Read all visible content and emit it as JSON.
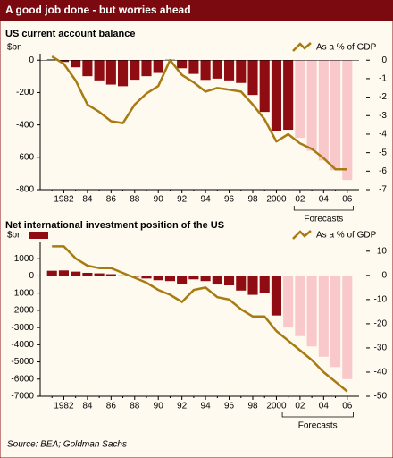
{
  "header": {
    "title": "A good job done - but worries ahead"
  },
  "chart_data": [
    {
      "type": "bar_line",
      "title": "US current account balance",
      "y_label": "$bn",
      "y_label_swatch": false,
      "x": [
        1981,
        1982,
        1983,
        1984,
        1985,
        1986,
        1987,
        1988,
        1989,
        1990,
        1991,
        1992,
        1993,
        1994,
        1995,
        1996,
        1997,
        1998,
        1999,
        2000,
        2001,
        2002,
        2003,
        2004,
        2005,
        2006
      ],
      "xlim": [
        1980,
        2007
      ],
      "xticks": [
        {
          "value": 1982,
          "label": "1982"
        },
        {
          "value": 1984,
          "label": "84"
        },
        {
          "value": 1986,
          "label": "86"
        },
        {
          "value": 1988,
          "label": "88"
        },
        {
          "value": 1990,
          "label": "90"
        },
        {
          "value": 1992,
          "label": "92"
        },
        {
          "value": 1994,
          "label": "94"
        },
        {
          "value": 1996,
          "label": "96"
        },
        {
          "value": 1998,
          "label": "98"
        },
        {
          "value": 2000,
          "label": "2000"
        },
        {
          "value": 2002,
          "label": "02"
        },
        {
          "value": 2004,
          "label": "04"
        },
        {
          "value": 2006,
          "label": "06"
        }
      ],
      "ylim": [
        -800,
        40
      ],
      "yticks": [
        0,
        -200,
        -400,
        -600,
        -800
      ],
      "y2lim": [
        -7,
        0.35
      ],
      "y2ticks": [
        0,
        -1,
        -2,
        -3,
        -4,
        -5,
        -6,
        -7
      ],
      "series": [
        {
          "type": "bar",
          "color": "#8e0c12",
          "forecast_color": "#f8c8cb",
          "values": [
            5,
            -11,
            -44,
            -99,
            -125,
            -151,
            -161,
            -121,
            -99,
            -79,
            3,
            -50,
            -85,
            -122,
            -114,
            -125,
            -141,
            -215,
            -320,
            -440,
            -430,
            -480,
            -560,
            -620,
            -680,
            -740
          ]
        },
        {
          "type": "line",
          "name": "As a % of GDP",
          "color": "#a77b12",
          "axis": "y2",
          "values": [
            0.2,
            -0.2,
            -1.1,
            -2.4,
            -2.8,
            -3.3,
            -3.4,
            -2.4,
            -1.8,
            -1.4,
            0.0,
            -0.8,
            -1.2,
            -1.7,
            -1.5,
            -1.6,
            -1.7,
            -2.4,
            -3.2,
            -4.4,
            -4.0,
            -4.5,
            -4.8,
            -5.3,
            -5.9,
            -5.9
          ]
        }
      ],
      "annotation": {
        "text": "Forecasts",
        "span": [
          2002,
          2006
        ]
      }
    },
    {
      "type": "bar_line",
      "title": "Net international investment position of the US",
      "y_label": "$bn",
      "y_label_swatch": true,
      "x": [
        1981,
        1982,
        1983,
        1984,
        1985,
        1986,
        1987,
        1988,
        1989,
        1990,
        1991,
        1992,
        1993,
        1994,
        1995,
        1996,
        1997,
        1998,
        1999,
        2000,
        2001,
        2002,
        2003,
        2004,
        2005,
        2006
      ],
      "xlim": [
        1980,
        2007
      ],
      "xticks": [
        {
          "value": 1982,
          "label": "1982"
        },
        {
          "value": 1984,
          "label": "84"
        },
        {
          "value": 1986,
          "label": "86"
        },
        {
          "value": 1988,
          "label": "88"
        },
        {
          "value": 1990,
          "label": "90"
        },
        {
          "value": 1992,
          "label": "92"
        },
        {
          "value": 1994,
          "label": "94"
        },
        {
          "value": 1996,
          "label": "96"
        },
        {
          "value": 1998,
          "label": "98"
        },
        {
          "value": 2000,
          "label": "2000"
        },
        {
          "value": 2002,
          "label": "02"
        },
        {
          "value": 2004,
          "label": "04"
        },
        {
          "value": 2006,
          "label": "06"
        }
      ],
      "ylim": [
        -7000,
        2000
      ],
      "yticks": [
        1000,
        0,
        -1000,
        -2000,
        -3000,
        -4000,
        -5000,
        -6000,
        -7000
      ],
      "y2lim": [
        -50,
        14
      ],
      "y2ticks": [
        10,
        0,
        -10,
        -20,
        -30,
        -40,
        -50
      ],
      "series": [
        {
          "type": "bar",
          "color": "#8e0c12",
          "forecast_color": "#f8c8cb",
          "values": [
            300,
            320,
            250,
            180,
            150,
            100,
            30,
            -50,
            -150,
            -250,
            -300,
            -450,
            -200,
            -300,
            -500,
            -550,
            -850,
            -1100,
            -1000,
            -2300,
            -3000,
            -3500,
            -4100,
            -4700,
            -5300,
            -6000
          ]
        },
        {
          "type": "line",
          "name": "As a % of GDP",
          "color": "#a77b12",
          "axis": "y2",
          "values": [
            12,
            12,
            7,
            4,
            3,
            3,
            1,
            -1,
            -3,
            -6,
            -8,
            -11,
            -6,
            -5,
            -9,
            -10,
            -14,
            -17,
            -17,
            -23,
            -27,
            -31,
            -35,
            -40,
            -44,
            -48
          ]
        }
      ],
      "annotation": {
        "text": "Forecasts",
        "span": [
          2001,
          2006
        ]
      }
    }
  ],
  "source": "Source: BEA; Goldman Sachs"
}
